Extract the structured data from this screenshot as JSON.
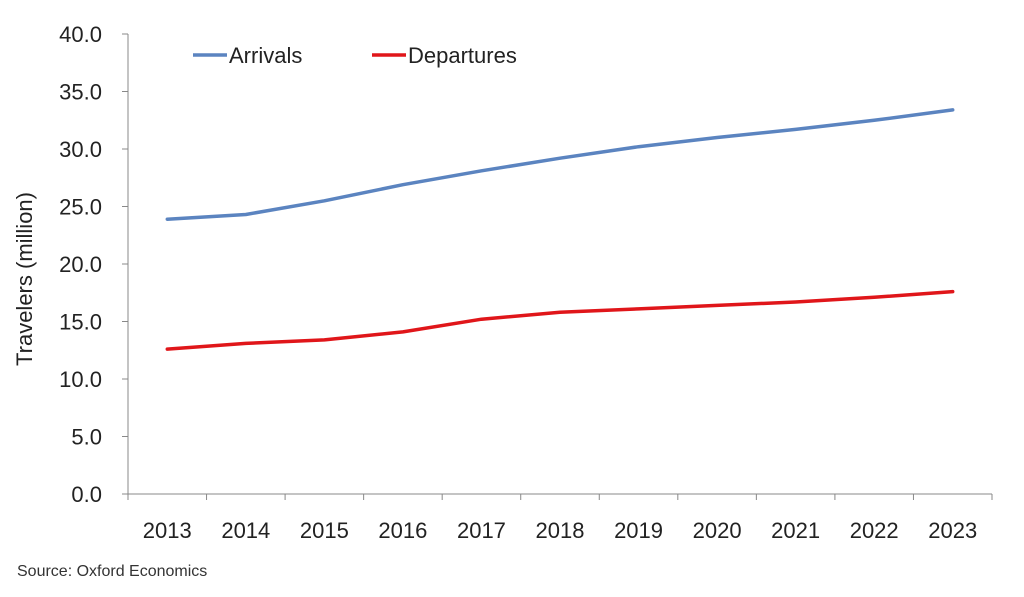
{
  "chart_data": {
    "type": "line",
    "categories": [
      "2013",
      "2014",
      "2015",
      "2016",
      "2017",
      "2018",
      "2019",
      "2020",
      "2021",
      "2022",
      "2023"
    ],
    "series": [
      {
        "name": "Arrivals",
        "color": "#5B84C0",
        "values": [
          23.9,
          24.3,
          25.5,
          26.9,
          28.1,
          29.2,
          30.2,
          31.0,
          31.7,
          32.5,
          33.4
        ]
      },
      {
        "name": "Departures",
        "color": "#E0161A",
        "values": [
          12.6,
          13.1,
          13.4,
          14.1,
          15.2,
          15.8,
          16.1,
          16.4,
          16.7,
          17.1,
          17.6
        ]
      }
    ],
    "ylabel": "Travelers (million)",
    "xlabel": "",
    "ylim": [
      0,
      40
    ],
    "yticks": [
      "0.0",
      "5.0",
      "10.0",
      "15.0",
      "20.0",
      "25.0",
      "30.0",
      "35.0",
      "40.0"
    ],
    "grid": false,
    "legend_position": "top-left"
  },
  "source": "Source: Oxford Economics"
}
